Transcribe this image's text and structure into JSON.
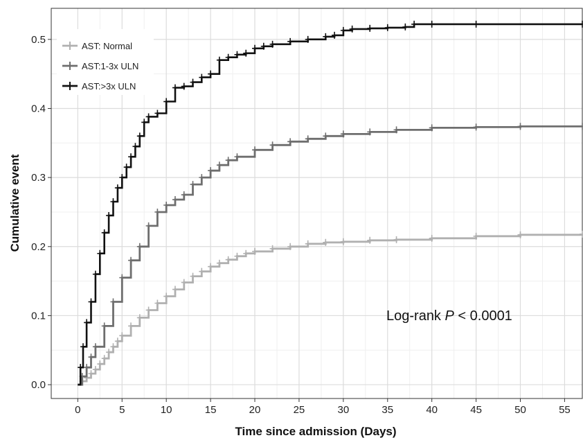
{
  "chart_data": {
    "type": "line",
    "step": true,
    "xlabel": "Time since admission (Days)",
    "ylabel": "Cumulative event",
    "xlim": [
      -3,
      57
    ],
    "ylim": [
      -0.02,
      0.545
    ],
    "xticks": [
      0,
      5,
      10,
      15,
      20,
      25,
      30,
      35,
      40,
      45,
      50,
      55
    ],
    "yticks": [
      0.0,
      0.1,
      0.2,
      0.3,
      0.4,
      0.5
    ],
    "ytick_labels": [
      "0.0",
      "0.1",
      "0.2",
      "0.3",
      "0.4",
      "0.5"
    ],
    "grid": true,
    "legend_position": "top-left",
    "annotation": {
      "prefix": "Log-rank ",
      "italic": "P",
      "suffix": " < 0.0001"
    },
    "series": [
      {
        "name": "AST: Normal",
        "color": "#b0b0b0",
        "x": [
          0,
          0.5,
          1,
          1.5,
          2,
          2.5,
          3,
          3.5,
          4,
          4.5,
          5,
          6,
          7,
          8,
          9,
          10,
          11,
          12,
          13,
          14,
          15,
          16,
          17,
          18,
          19,
          20,
          22,
          24,
          26,
          28,
          30,
          33,
          36,
          40,
          45,
          50,
          57
        ],
        "y": [
          0,
          0.005,
          0.01,
          0.016,
          0.022,
          0.03,
          0.038,
          0.047,
          0.055,
          0.063,
          0.071,
          0.085,
          0.097,
          0.108,
          0.118,
          0.128,
          0.138,
          0.148,
          0.157,
          0.164,
          0.171,
          0.176,
          0.181,
          0.186,
          0.19,
          0.193,
          0.197,
          0.2,
          0.204,
          0.206,
          0.207,
          0.209,
          0.21,
          0.212,
          0.215,
          0.217,
          0.218
        ]
      },
      {
        "name": "AST:1-3x ULN",
        "color": "#6e6e6e",
        "x": [
          0,
          0.5,
          1,
          1.5,
          2,
          3,
          4,
          5,
          6,
          7,
          8,
          9,
          10,
          11,
          12,
          13,
          14,
          15,
          16,
          17,
          18,
          20,
          22,
          24,
          26,
          28,
          30,
          33,
          36,
          40,
          45,
          50,
          57
        ],
        "y": [
          0,
          0.012,
          0.025,
          0.04,
          0.055,
          0.085,
          0.12,
          0.155,
          0.18,
          0.2,
          0.23,
          0.25,
          0.26,
          0.268,
          0.275,
          0.29,
          0.3,
          0.31,
          0.318,
          0.325,
          0.33,
          0.34,
          0.347,
          0.352,
          0.356,
          0.36,
          0.363,
          0.366,
          0.369,
          0.372,
          0.373,
          0.374,
          0.374
        ]
      },
      {
        "name": "AST:>3x ULN",
        "color": "#111111",
        "x": [
          0,
          0.3,
          0.6,
          1,
          1.5,
          2,
          2.5,
          3,
          3.5,
          4,
          4.5,
          5,
          5.5,
          6,
          6.5,
          7,
          7.5,
          8,
          9,
          10,
          11,
          12,
          13,
          14,
          15,
          16,
          17,
          18,
          19,
          20,
          21,
          22,
          24,
          26,
          28,
          29,
          30,
          31,
          33,
          35,
          37,
          38,
          40,
          45,
          57
        ],
        "y": [
          0,
          0.025,
          0.055,
          0.09,
          0.12,
          0.16,
          0.19,
          0.22,
          0.245,
          0.265,
          0.285,
          0.3,
          0.315,
          0.33,
          0.345,
          0.36,
          0.38,
          0.388,
          0.393,
          0.41,
          0.43,
          0.432,
          0.438,
          0.445,
          0.45,
          0.47,
          0.474,
          0.478,
          0.48,
          0.487,
          0.49,
          0.493,
          0.497,
          0.5,
          0.504,
          0.506,
          0.513,
          0.515,
          0.516,
          0.517,
          0.518,
          0.522,
          0.522,
          0.522,
          0.522
        ]
      }
    ]
  }
}
